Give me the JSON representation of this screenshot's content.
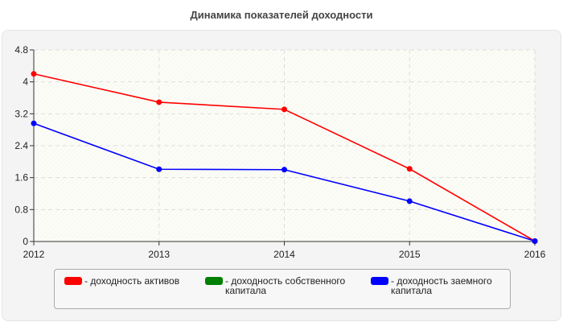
{
  "chart_data": {
    "type": "line",
    "title": "Динамика показателей доходности",
    "categories": [
      "2012",
      "2013",
      "2014",
      "2015",
      "2016"
    ],
    "ylim": [
      0,
      4.8
    ],
    "yticks": [
      "0",
      "0.8",
      "1.6",
      "2.4",
      "3.2",
      "4",
      "4.8"
    ],
    "grid": true,
    "legend_position": "bottom",
    "series": [
      {
        "name": "- доходность активов",
        "color": "#ff0000",
        "values": [
          4.2,
          3.49,
          3.31,
          1.82,
          0.01
        ]
      },
      {
        "name": "- доходность собственного капитала",
        "color": "#008000",
        "values": [
          null,
          null,
          null,
          null,
          null
        ]
      },
      {
        "name": "- доходность заемного капитала",
        "color": "#0000ff",
        "values": [
          2.96,
          1.81,
          1.8,
          1.01,
          0.01
        ]
      }
    ]
  }
}
